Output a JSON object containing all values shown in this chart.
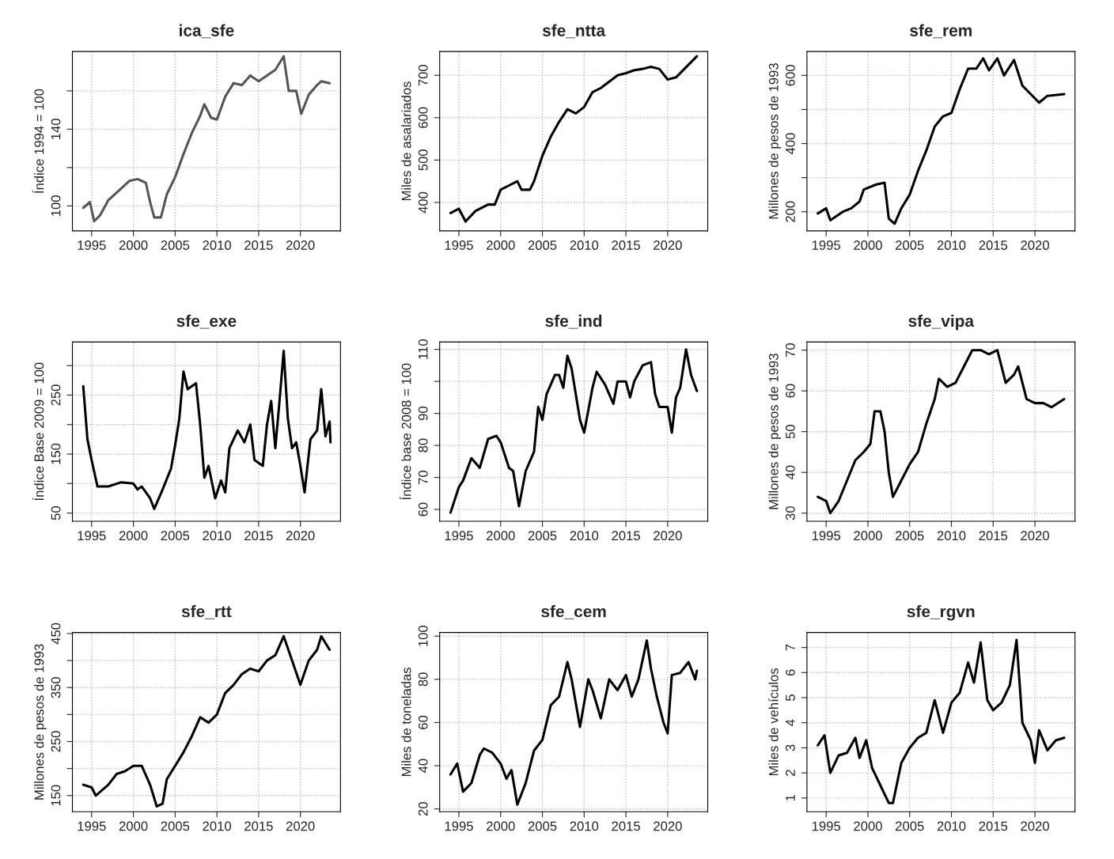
{
  "chart_data": [
    {
      "type": "line",
      "title": "ica_sfe",
      "ylabel": "Índice 1994 = 100",
      "xlim": [
        1992.7,
        2024.8
      ],
      "xticks": [
        1995,
        2000,
        2005,
        2010,
        2015,
        2020
      ],
      "ylim": [
        87,
        180.5
      ],
      "yticks": [
        100,
        {
          "value": 120,
          "label": null
        },
        140,
        {
          "value": 160,
          "label": null
        }
      ],
      "grid": true,
      "x": [
        1994,
        1994.8,
        1995.3,
        1996,
        1997,
        1998.5,
        1999.5,
        2000.5,
        2001.5,
        2002,
        2002.5,
        2003.3,
        2004,
        2005,
        2006,
        2007,
        2008,
        2008.5,
        2009.3,
        2010,
        2011,
        2012,
        2013,
        2014,
        2015,
        2016,
        2017,
        2018,
        2018.6,
        2019.5,
        2020.1,
        2021,
        2022,
        2022.5,
        2023.5
      ],
      "series": [
        {
          "color": "#555555",
          "values": [
            99,
            102,
            92,
            95,
            103,
            109,
            113,
            114,
            112,
            102,
            94,
            94,
            106,
            115,
            127,
            138,
            147,
            153,
            146,
            145,
            157,
            164,
            163,
            168,
            165,
            168,
            171,
            178,
            160,
            160,
            148,
            158,
            163,
            165,
            164
          ]
        }
      ]
    },
    {
      "type": "line",
      "title": "sfe_ntta",
      "ylabel": "Miles de asalariados",
      "xlim": [
        1992.7,
        2024.8
      ],
      "xticks": [
        1995,
        2000,
        2005,
        2010,
        2015,
        2020
      ],
      "ylim": [
        333,
        756
      ],
      "yticks": [
        400,
        500,
        600,
        700
      ],
      "grid": true,
      "x": [
        1994,
        1995,
        1995.8,
        1997,
        1998.5,
        1999.3,
        2000,
        2001,
        2002,
        2002.5,
        2003.5,
        2004,
        2005,
        2006,
        2007,
        2008,
        2009,
        2010,
        2011,
        2012,
        2013,
        2014,
        2015,
        2016,
        2017,
        2018,
        2019,
        2020,
        2021,
        2022,
        2023.5
      ],
      "series": [
        {
          "color": "#000000",
          "values": [
            375,
            385,
            355,
            380,
            395,
            395,
            430,
            440,
            450,
            430,
            430,
            450,
            510,
            555,
            590,
            620,
            610,
            625,
            660,
            670,
            685,
            700,
            705,
            712,
            715,
            720,
            715,
            690,
            695,
            715,
            745
          ]
        }
      ]
    },
    {
      "type": "line",
      "title": "sfe_rem",
      "ylabel": "Millones de pesos de 1993",
      "xlim": [
        1992.7,
        2024.8
      ],
      "xticks": [
        1995,
        2000,
        2005,
        2010,
        2015,
        2020
      ],
      "ylim": [
        144,
        670
      ],
      "yticks": [
        200,
        {
          "value": 300,
          "label": null
        },
        400,
        {
          "value": 500,
          "label": null
        },
        600
      ],
      "grid": true,
      "x": [
        1994,
        1995,
        1995.5,
        1997,
        1998,
        1999,
        1999.5,
        2001,
        2002,
        2002.5,
        2003.2,
        2004,
        2005,
        2006,
        2007,
        2008,
        2009,
        2010,
        2011,
        2012,
        2013,
        2013.8,
        2014.5,
        2015.5,
        2016.3,
        2017.5,
        2018.5,
        2019.5,
        2020.5,
        2021.5,
        2023.5
      ],
      "series": [
        {
          "color": "#000000",
          "values": [
            195,
            210,
            175,
            200,
            210,
            230,
            265,
            280,
            285,
            180,
            165,
            210,
            250,
            320,
            380,
            450,
            480,
            490,
            560,
            620,
            620,
            650,
            615,
            650,
            600,
            645,
            570,
            545,
            520,
            540,
            545
          ]
        }
      ]
    },
    {
      "type": "line",
      "title": "sfe_exe",
      "ylabel": "Índice Base 2009 = 100",
      "xlim": [
        1992.7,
        2024.8
      ],
      "xticks": [
        1995,
        2000,
        2005,
        2010,
        2015,
        2020
      ],
      "ylim": [
        36,
        340
      ],
      "yticks": [
        50,
        {
          "value": 100,
          "label": null
        },
        150,
        {
          "value": 200,
          "label": null
        },
        250,
        {
          "value": 300,
          "label": null
        }
      ],
      "grid": true,
      "x": [
        1994,
        1994.5,
        1995,
        1995.7,
        1997,
        1998.5,
        2000,
        2000.5,
        2001,
        2002,
        2002.5,
        2003.5,
        2004.5,
        2005,
        2005.5,
        2006,
        2006.5,
        2007.5,
        2008,
        2008.5,
        2009,
        2009.8,
        2010.5,
        2011,
        2011.5,
        2012.5,
        2013.3,
        2014,
        2014.5,
        2015.5,
        2016,
        2016.5,
        2017,
        2017.5,
        2018,
        2018.5,
        2019,
        2019.5,
        2020,
        2020.5,
        2021.2,
        2022,
        2022.5,
        2023,
        2023.5,
        2023.6
      ],
      "series": [
        {
          "color": "#000000",
          "values": [
            265,
            175,
            140,
            95,
            95,
            102,
            100,
            90,
            95,
            75,
            57,
            90,
            125,
            165,
            210,
            290,
            260,
            270,
            200,
            110,
            130,
            75,
            105,
            85,
            160,
            190,
            170,
            200,
            140,
            130,
            200,
            240,
            160,
            240,
            325,
            210,
            160,
            170,
            130,
            85,
            175,
            190,
            260,
            180,
            205,
            170
          ]
        }
      ]
    },
    {
      "type": "line",
      "title": "sfe_ind",
      "ylabel": "Índice base 2008 = 100",
      "xlim": [
        1992.7,
        2024.8
      ],
      "xticks": [
        1995,
        2000,
        2005,
        2010,
        2015,
        2020
      ],
      "ylim": [
        56.3,
        112.3
      ],
      "yticks": [
        60,
        70,
        80,
        90,
        {
          "value": 100,
          "label": null
        },
        110
      ],
      "grid": true,
      "x": [
        1994,
        1995,
        1995.5,
        1996.5,
        1997.5,
        1998.5,
        1999.5,
        2000,
        2001,
        2001.5,
        2002.2,
        2003,
        2004,
        2004.5,
        2005,
        2005.5,
        2006.5,
        2007,
        2007.5,
        2008,
        2008.5,
        2009.5,
        2010,
        2011,
        2011.5,
        2012.5,
        2013.5,
        2014,
        2015,
        2015.5,
        2016,
        2017,
        2018,
        2018.5,
        2019,
        2020,
        2020.5,
        2021,
        2021.5,
        2022.2,
        2022.8,
        2023.5
      ],
      "series": [
        {
          "color": "#000000",
          "values": [
            59,
            67,
            69,
            76,
            73,
            82,
            83,
            81,
            73,
            72,
            61,
            72,
            78,
            92,
            88,
            96,
            102,
            102,
            98,
            108,
            104,
            88,
            84,
            98,
            103,
            99,
            93,
            100,
            100,
            95,
            100,
            105,
            106,
            96,
            92,
            92,
            84,
            95,
            98,
            110,
            102,
            97
          ]
        }
      ]
    },
    {
      "type": "line",
      "title": "sfe_vipa",
      "ylabel": "Millones de pesos de 1993",
      "xlim": [
        1992.7,
        2024.8
      ],
      "xticks": [
        1995,
        2000,
        2005,
        2010,
        2015,
        2020
      ],
      "ylim": [
        28,
        72
      ],
      "yticks": [
        30,
        40,
        50,
        60,
        70
      ],
      "grid": true,
      "x": [
        1994,
        1995,
        1995.5,
        1996.5,
        1997.5,
        1998.5,
        1999.5,
        2000.3,
        2000.8,
        2001.5,
        2002,
        2002.5,
        2003,
        2004,
        2005,
        2006,
        2007,
        2008,
        2008.5,
        2009.5,
        2010.5,
        2011.5,
        2012.5,
        2013.5,
        2014.5,
        2015.5,
        2016.5,
        2017.5,
        2018,
        2019,
        2020,
        2021,
        2022,
        2023.5
      ],
      "series": [
        {
          "color": "#000000",
          "values": [
            34,
            33,
            30,
            33,
            38,
            43,
            45,
            47,
            55,
            55,
            50,
            40,
            34,
            38,
            42,
            45,
            52,
            58,
            63,
            61,
            62,
            66,
            70,
            70,
            69,
            70,
            62,
            64,
            66,
            58,
            57,
            57,
            56,
            58
          ]
        }
      ]
    },
    {
      "type": "line",
      "title": "sfe_rtt",
      "ylabel": "Millones de pesos de 1993",
      "xlim": [
        1992.7,
        2024.8
      ],
      "xticks": [
        1995,
        2000,
        2005,
        2010,
        2015,
        2020
      ],
      "ylim": [
        120,
        452
      ],
      "yticks": [
        150,
        {
          "value": 200,
          "label": null
        },
        250,
        {
          "value": 300,
          "label": null
        },
        350,
        {
          "value": 400,
          "label": null
        },
        450
      ],
      "grid": true,
      "x": [
        1994,
        1995,
        1995.5,
        1997,
        1998,
        1999,
        2000,
        2001,
        2002,
        2002.8,
        2003.5,
        2004,
        2005,
        2006,
        2007,
        2008,
        2009,
        2010,
        2011,
        2012,
        2013,
        2014,
        2015,
        2016,
        2017,
        2018,
        2019,
        2020,
        2021,
        2022,
        2022.5,
        2023.5
      ],
      "series": [
        {
          "color": "#000000",
          "values": [
            170,
            165,
            150,
            170,
            190,
            195,
            205,
            205,
            170,
            130,
            135,
            180,
            205,
            230,
            260,
            295,
            285,
            300,
            340,
            355,
            375,
            385,
            380,
            400,
            410,
            445,
            400,
            355,
            400,
            420,
            445,
            420
          ]
        }
      ]
    },
    {
      "type": "line",
      "title": "sfe_cem",
      "ylabel": "Miles de toneladas",
      "xlim": [
        1992.7,
        2024.8
      ],
      "xticks": [
        1995,
        2000,
        2005,
        2010,
        2015,
        2020
      ],
      "ylim": [
        18.7,
        101.7
      ],
      "yticks": [
        20,
        40,
        60,
        80,
        100
      ],
      "grid": true,
      "x": [
        1994,
        1994.8,
        1995.5,
        1996.5,
        1997.5,
        1998,
        1999,
        2000,
        2000.7,
        2001.3,
        2002,
        2003,
        2004,
        2005,
        2006,
        2007,
        2008,
        2008.5,
        2009.5,
        2010.5,
        2011,
        2012,
        2013,
        2014,
        2015,
        2015.7,
        2016.5,
        2017.5,
        2018,
        2018.7,
        2019.5,
        2020,
        2020.5,
        2021.5,
        2022.5,
        2023.3,
        2023.5
      ],
      "series": [
        {
          "color": "#000000",
          "values": [
            36,
            41,
            28,
            32,
            45,
            48,
            46,
            41,
            34,
            38,
            22,
            32,
            47,
            52,
            68,
            72,
            88,
            80,
            58,
            80,
            75,
            62,
            80,
            75,
            82,
            72,
            80,
            98,
            85,
            72,
            60,
            55,
            82,
            83,
            88,
            80,
            84
          ]
        }
      ]
    },
    {
      "type": "line",
      "title": "sfe_rgvn",
      "ylabel": "Miles de vehículos",
      "xlim": [
        1992.7,
        2024.8
      ],
      "xticks": [
        1995,
        2000,
        2005,
        2010,
        2015,
        2020
      ],
      "ylim": [
        0.45,
        7.6
      ],
      "yticks": [
        1,
        2,
        3,
        4,
        5,
        6,
        7
      ],
      "grid": true,
      "x": [
        1994,
        1994.8,
        1995.5,
        1996.5,
        1997.5,
        1998.5,
        1999,
        1999.8,
        2000.5,
        2001.5,
        2002.5,
        2003,
        2004,
        2005,
        2006,
        2007,
        2008,
        2009,
        2010,
        2011,
        2012,
        2012.7,
        2013.5,
        2014.3,
        2015,
        2016,
        2017,
        2017.8,
        2018.5,
        2019.5,
        2020,
        2020.5,
        2021.5,
        2022.5,
        2023.5
      ],
      "series": [
        {
          "color": "#000000",
          "values": [
            3.1,
            3.5,
            2.0,
            2.7,
            2.8,
            3.4,
            2.6,
            3.3,
            2.2,
            1.5,
            0.8,
            0.8,
            2.4,
            3.0,
            3.4,
            3.6,
            4.9,
            3.6,
            4.8,
            5.2,
            6.4,
            5.6,
            7.2,
            4.9,
            4.5,
            4.8,
            5.5,
            7.3,
            4.0,
            3.3,
            2.4,
            3.7,
            2.9,
            3.3,
            3.4
          ]
        }
      ]
    }
  ]
}
